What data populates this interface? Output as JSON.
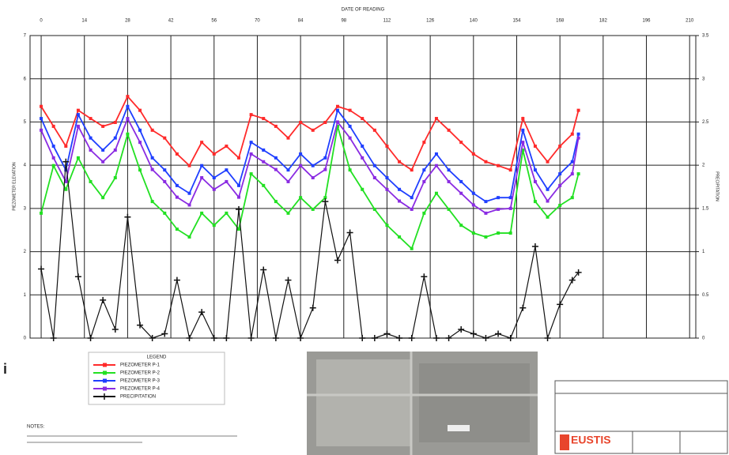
{
  "chart_data": {
    "type": "line",
    "x_label": "DATE OF READING",
    "y_label": "PIEZOMETER ELEVATION",
    "y2_label": "PRECIPITATION",
    "x": [
      0,
      4,
      8,
      12,
      16,
      20,
      24,
      28,
      32,
      36,
      40,
      44,
      48,
      52,
      56,
      60,
      64,
      68,
      72,
      76,
      80,
      84,
      88,
      92,
      96,
      100,
      104,
      108,
      112,
      116,
      120,
      124,
      128,
      132,
      136,
      140,
      144,
      148,
      152,
      156,
      160,
      164,
      168,
      172,
      174
    ],
    "xlim": [
      -3.6,
      212
    ],
    "xticks": [
      0,
      14,
      28,
      42,
      56,
      70,
      84,
      98,
      112,
      126,
      140,
      154,
      168,
      182,
      196,
      210
    ],
    "ylim": [
      0,
      7
    ],
    "yticks": [
      0,
      1,
      2,
      3,
      4,
      5,
      6,
      7
    ],
    "y2lim": [
      0,
      3.5
    ],
    "y2ticks": [
      0,
      0.5,
      1,
      1.5,
      2,
      2.5,
      3,
      3.5
    ],
    "grid": true,
    "legend_title": "LEGEND",
    "series": [
      {
        "name": "PIEZOMETER P-1",
        "color": "#ff2a2a",
        "marker": "square",
        "values": [
          5.36,
          4.9,
          4.44,
          5.27,
          5.08,
          4.9,
          4.99,
          5.59,
          5.27,
          4.81,
          4.63,
          4.26,
          3.99,
          4.53,
          4.26,
          4.44,
          4.17,
          5.17,
          5.08,
          4.9,
          4.63,
          4.99,
          4.81,
          4.99,
          5.36,
          5.27,
          5.08,
          4.81,
          4.44,
          4.08,
          3.89,
          4.53,
          5.08,
          4.81,
          4.53,
          4.26,
          4.08,
          3.99,
          3.89,
          5.08,
          4.44,
          4.08,
          4.44,
          4.72,
          5.27
        ]
      },
      {
        "name": "PIEZOMETER P-2",
        "color": "#22e022",
        "marker": "square",
        "values": [
          2.89,
          3.99,
          3.44,
          4.17,
          3.62,
          3.25,
          3.71,
          4.72,
          3.89,
          3.16,
          2.89,
          2.52,
          2.34,
          2.89,
          2.61,
          2.89,
          2.52,
          3.8,
          3.53,
          3.16,
          2.89,
          3.25,
          2.98,
          3.25,
          4.9,
          3.89,
          3.44,
          2.98,
          2.61,
          2.34,
          2.07,
          2.89,
          3.35,
          2.98,
          2.61,
          2.43,
          2.34,
          2.43,
          2.43,
          4.35,
          3.16,
          2.8,
          3.07,
          3.25,
          3.8
        ]
      },
      {
        "name": "PIEZOMETER P-3",
        "color": "#1f3fff",
        "marker": "square",
        "values": [
          5.08,
          4.44,
          3.89,
          5.17,
          4.63,
          4.35,
          4.63,
          5.36,
          4.81,
          4.17,
          3.89,
          3.53,
          3.35,
          3.99,
          3.71,
          3.89,
          3.53,
          4.53,
          4.35,
          4.17,
          3.89,
          4.26,
          3.99,
          4.17,
          5.27,
          4.9,
          4.44,
          3.99,
          3.71,
          3.44,
          3.25,
          3.89,
          4.26,
          3.89,
          3.62,
          3.35,
          3.16,
          3.25,
          3.25,
          4.81,
          3.89,
          3.44,
          3.8,
          4.08,
          4.72
        ]
      },
      {
        "name": "PIEZOMETER P-4",
        "color": "#8a2be2",
        "marker": "square",
        "values": [
          4.81,
          4.17,
          3.62,
          4.9,
          4.35,
          4.08,
          4.35,
          5.08,
          4.53,
          3.9,
          3.62,
          3.26,
          3.08,
          3.71,
          3.44,
          3.62,
          3.26,
          4.26,
          4.08,
          3.9,
          3.62,
          3.99,
          3.71,
          3.9,
          5.0,
          4.63,
          4.17,
          3.71,
          3.44,
          3.17,
          2.98,
          3.62,
          3.99,
          3.62,
          3.35,
          3.08,
          2.89,
          2.98,
          3.0,
          4.53,
          3.62,
          3.17,
          3.53,
          3.8,
          4.63
        ]
      },
      {
        "name": "PRECIPITATION",
        "color": "#111111",
        "marker": "plus",
        "axis": "y2",
        "values": [
          0.8,
          0,
          2.04,
          0.71,
          0,
          0.44,
          0.1,
          1.4,
          0.15,
          0,
          0.05,
          0.67,
          0,
          0.3,
          0,
          0,
          1.49,
          0,
          0.79,
          0,
          0.67,
          0,
          0.35,
          1.58,
          0.9,
          1.22,
          0,
          0,
          0.05,
          0,
          0,
          0.71,
          0,
          0,
          0.1,
          0.05,
          0,
          0.05,
          0,
          0.35,
          1.06,
          0,
          0.39,
          0.67,
          0.76
        ]
      }
    ]
  },
  "notes_label": "NOTES:",
  "side_marker": "i",
  "title_block": {
    "company": "EUSTIS"
  }
}
